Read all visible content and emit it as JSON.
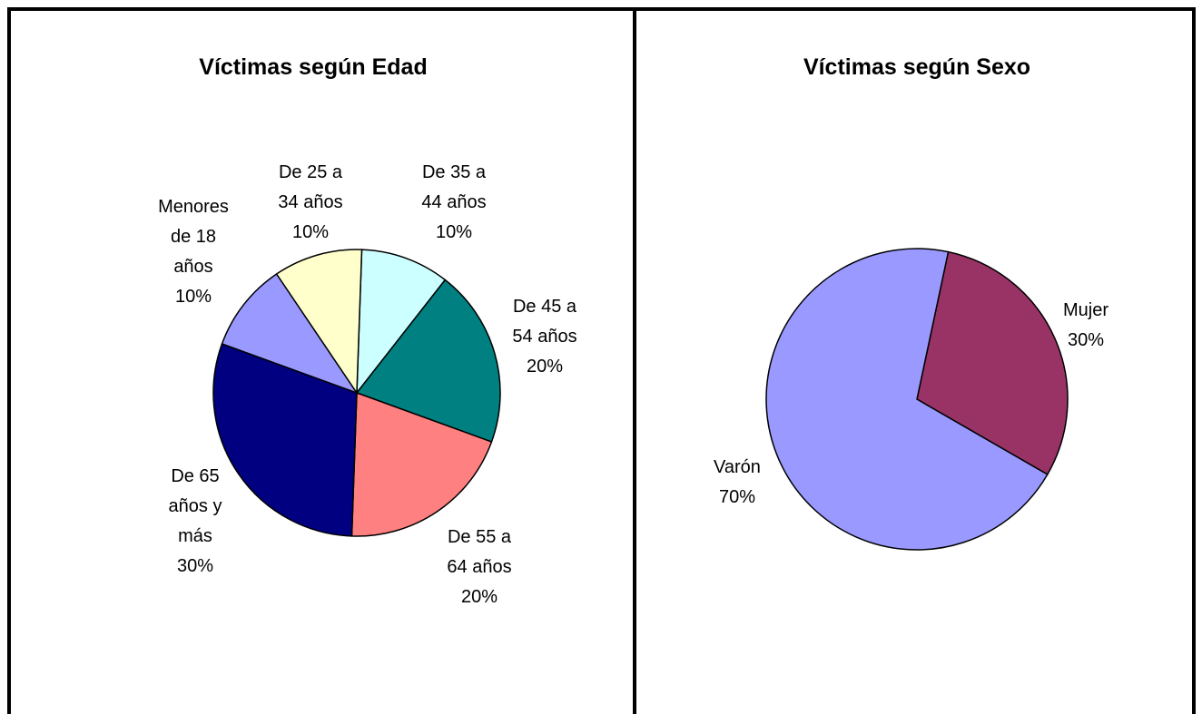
{
  "chart_data": [
    {
      "type": "pie",
      "title": "Víctimas según Edad",
      "categories": [
        "De 35 a 44 años",
        "De 45 a 54 años",
        "De 55 a 64 años",
        "De 65 años y más",
        "Menores de 18 años",
        "De 25 a 34 años"
      ],
      "values": [
        10,
        20,
        20,
        30,
        10,
        10
      ],
      "value_labels": [
        "10%",
        "20%",
        "20%",
        "30%",
        "10%",
        "10%"
      ],
      "colors": [
        "#ccffff",
        "#008080",
        "#ff8080",
        "#000080",
        "#9999ff",
        "#ffffcc"
      ]
    },
    {
      "type": "pie",
      "title": "Víctimas según Sexo",
      "categories": [
        "Mujer",
        "Varón"
      ],
      "values": [
        30,
        70
      ],
      "value_labels": [
        "30%",
        "70%"
      ],
      "colors": [
        "#993366",
        "#9999ff"
      ]
    }
  ]
}
